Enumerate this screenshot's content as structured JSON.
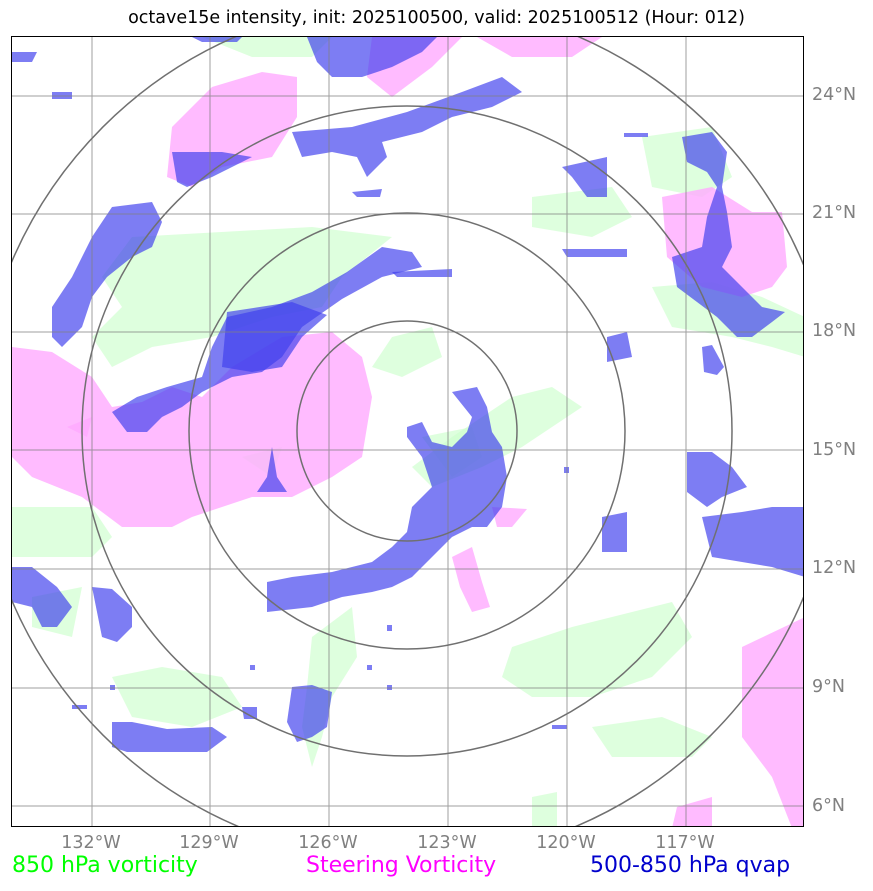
{
  "title": "octave15e intensity, init: 2025100500, valid: 2025100512 (Hour: 012)",
  "map": {
    "lon_labels": [
      "132°W",
      "129°W",
      "126°W",
      "123°W",
      "120°W",
      "117°W"
    ],
    "lat_labels": [
      "24°N",
      "21°N",
      "18°N",
      "15°N",
      "12°N",
      "9°N",
      "6°N"
    ],
    "range_rings": 4
  },
  "legend": {
    "vorticity_850": "850 hPa vorticity",
    "steering_vorticity": "Steering Vorticity",
    "qvap": "500-850 hPa qvap"
  },
  "colors": {
    "vorticity_850": "#00ff00",
    "steering_vorticity": "#ff00ff",
    "qvap": "#0000cc",
    "grid": "#808080"
  }
}
